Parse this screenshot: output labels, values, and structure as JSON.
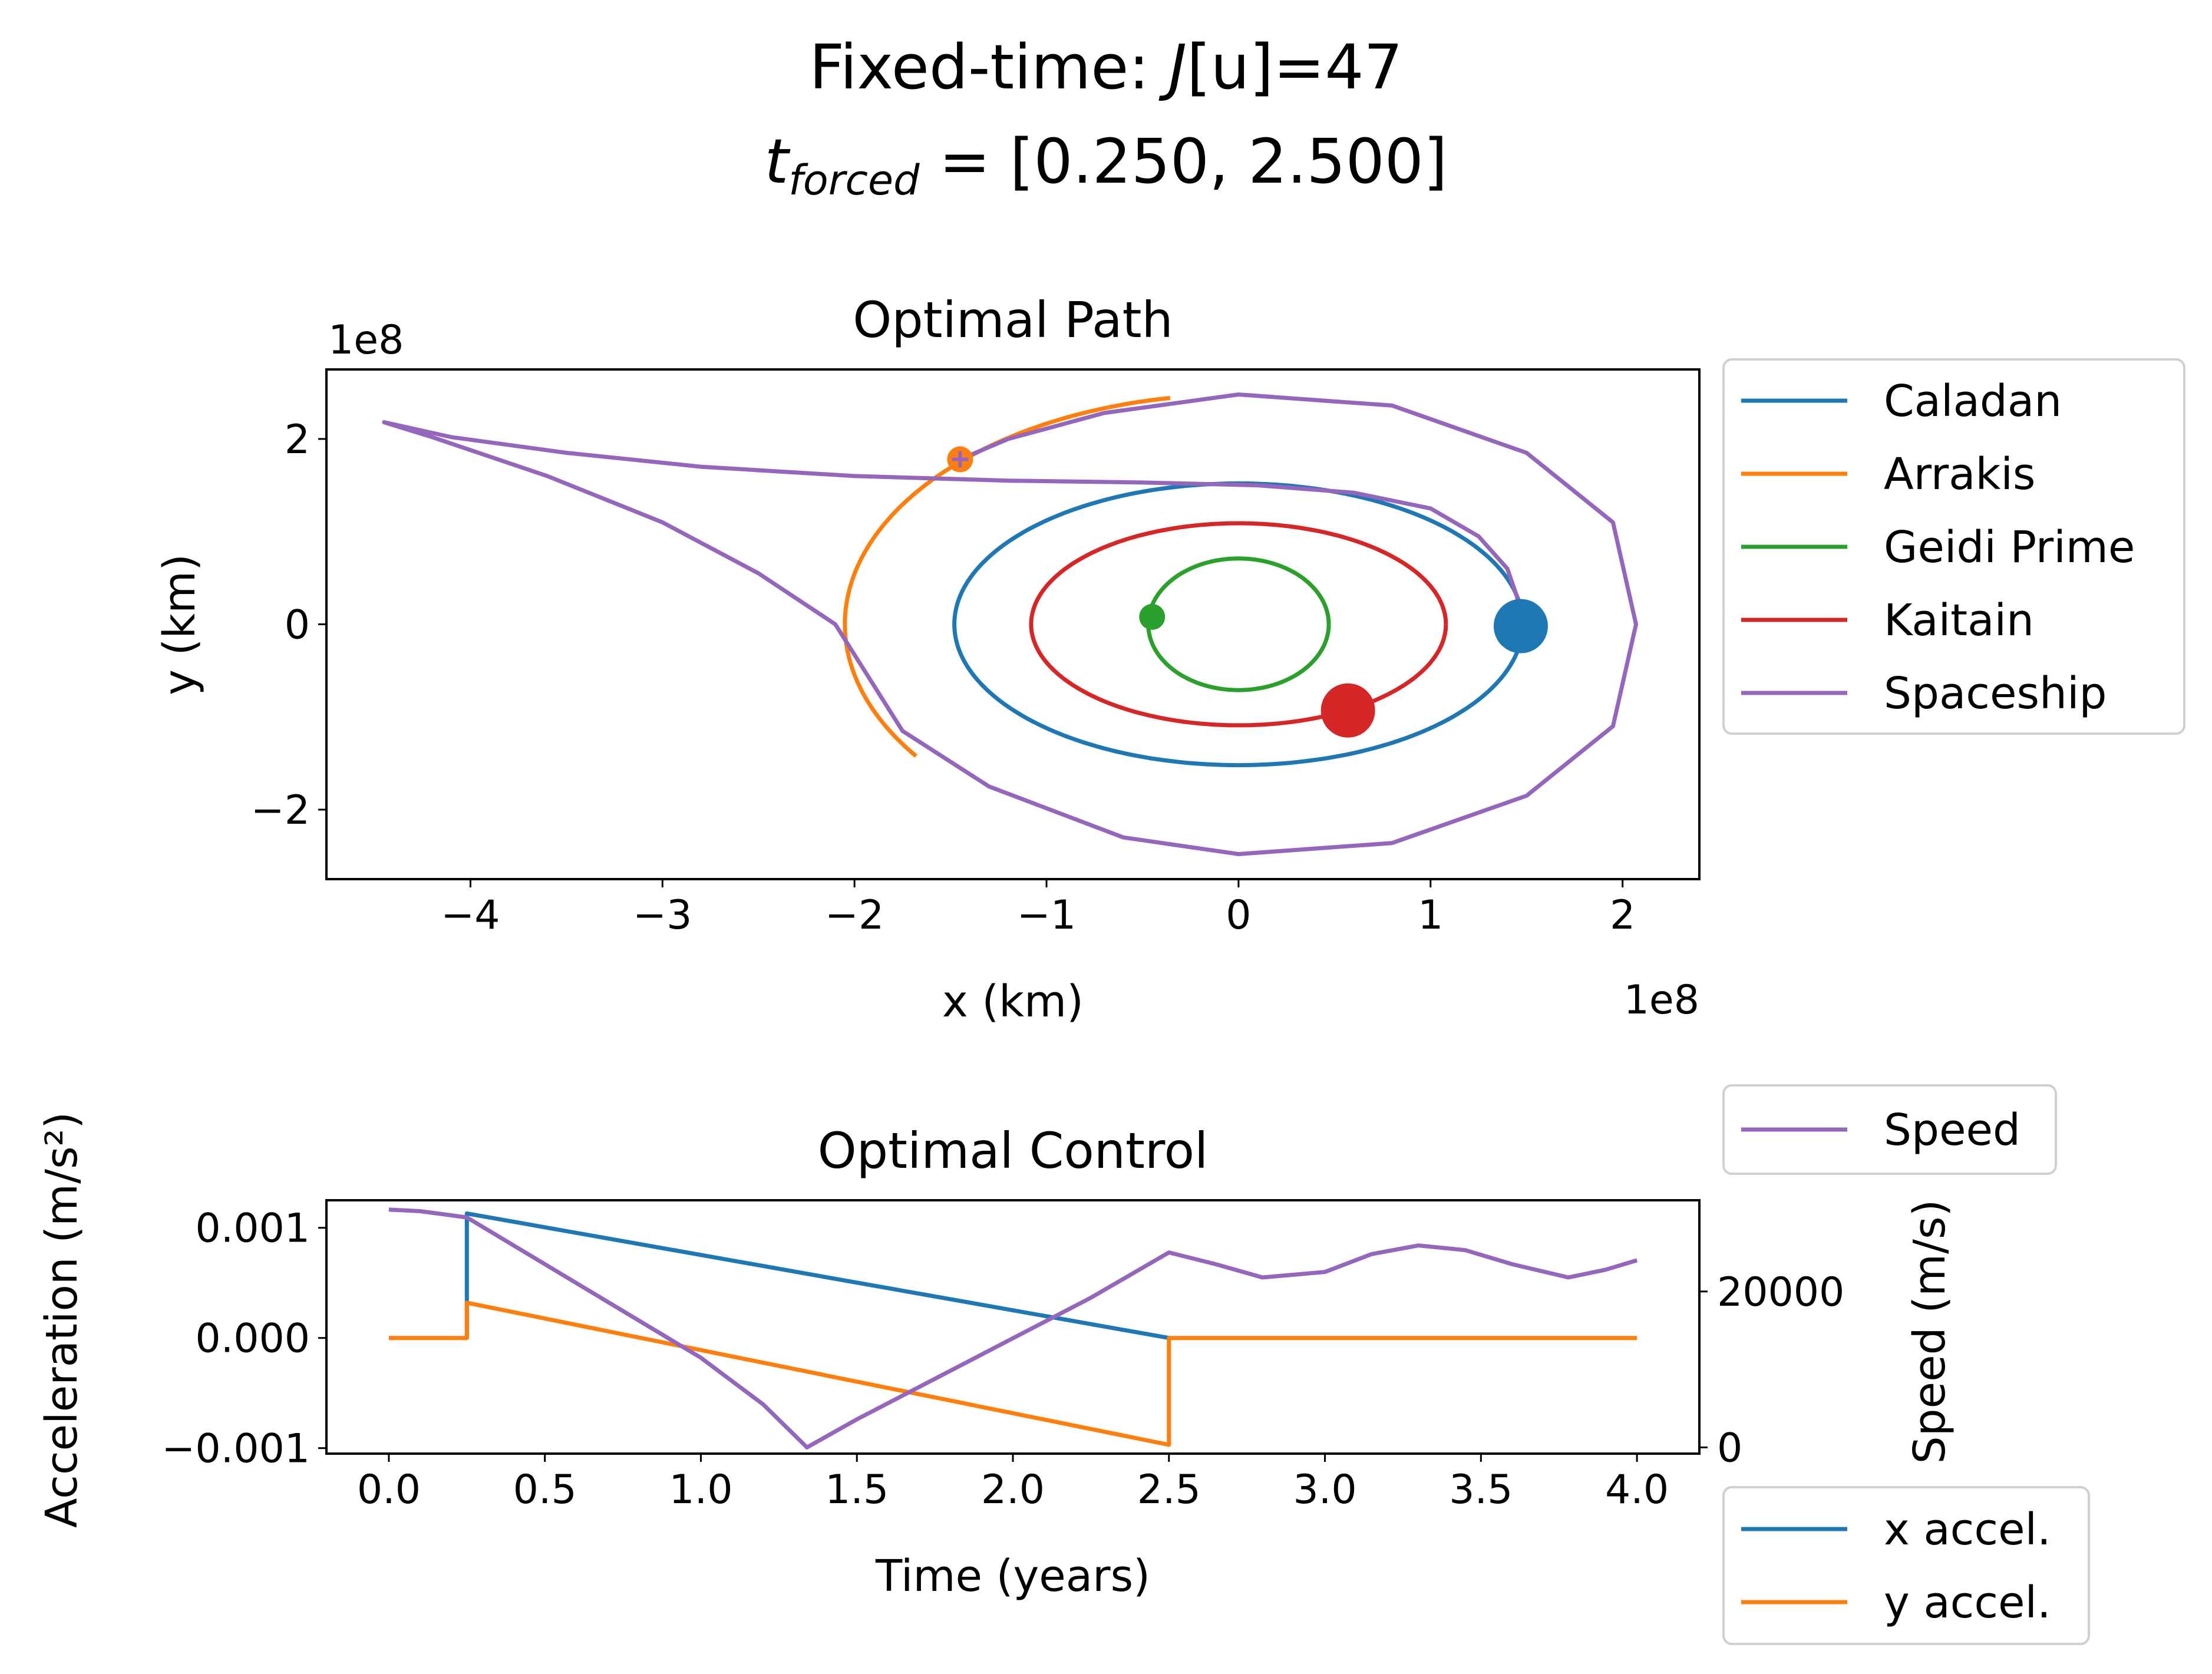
{
  "figure": {
    "title_line1": "Fixed-time: J[u]=47",
    "title_line2": "t_forced = [0.250, 2.500]",
    "title_line1_prefix": "Fixed-time: ",
    "title_line1_J": "J",
    "title_line1_u": "[u]",
    "title_line1_value": "=47",
    "title_line2_t": "t",
    "title_line2_sub": "forced",
    "title_line2_rest": " = [0.250, 2.500]"
  },
  "chart_data": [
    {
      "type": "line",
      "title": "Optimal Path",
      "xlabel": "x (km)",
      "ylabel": "y (km)",
      "x_scale_label": "1e8",
      "y_scale_label": "1e8",
      "xlim": [
        -4.75,
        2.4
      ],
      "ylim": [
        -2.75,
        2.75
      ],
      "xticks": [
        -4,
        -3,
        -2,
        -1,
        0,
        1,
        2
      ],
      "yticks": [
        -2,
        0,
        2
      ],
      "xtick_labels": [
        "−4",
        "−3",
        "−2",
        "−1",
        "0",
        "1",
        "2"
      ],
      "ytick_labels": [
        "−2",
        "0",
        "2"
      ],
      "units_note": "coordinates in units of 1e8 km",
      "orbits": [
        {
          "name": "Caladan",
          "color": "#1f77b4",
          "semi_major_x": 1.48,
          "semi_minor_y": 1.52
        },
        {
          "name": "Arrakis",
          "color": "#ff7f0e",
          "semi_major_x": 2.05,
          "semi_minor_y": 2.48,
          "arc_deg": [
            100,
            215
          ]
        },
        {
          "name": "Geidi Prime",
          "color": "#2ca02c",
          "semi_major_x": 0.47,
          "semi_minor_y": 0.71
        },
        {
          "name": "Kaitain",
          "color": "#d62728",
          "semi_major_x": 1.08,
          "semi_minor_y": 1.09
        }
      ],
      "bodies": [
        {
          "name": "Caladan",
          "color": "#1f77b4",
          "x": 1.47,
          "y": -0.02,
          "size": "large"
        },
        {
          "name": "Arrakis",
          "color": "#ff7f0e",
          "x": -1.45,
          "y": 1.78,
          "size": "small"
        },
        {
          "name": "Geidi Prime",
          "color": "#2ca02c",
          "x": -0.45,
          "y": 0.08,
          "size": "small"
        },
        {
          "name": "Kaitain",
          "color": "#d62728",
          "x": 0.57,
          "y": -0.93,
          "size": "large"
        }
      ],
      "spaceship": {
        "name": "Spaceship",
        "color": "#9467bd",
        "points": [
          [
            1.47,
            0.0
          ],
          [
            1.45,
            0.3
          ],
          [
            1.4,
            0.6
          ],
          [
            1.25,
            0.95
          ],
          [
            1.0,
            1.25
          ],
          [
            0.6,
            1.42
          ],
          [
            0.1,
            1.5
          ],
          [
            -0.5,
            1.53
          ],
          [
            -1.2,
            1.55
          ],
          [
            -2.0,
            1.6
          ],
          [
            -2.8,
            1.7
          ],
          [
            -3.5,
            1.85
          ],
          [
            -4.1,
            2.02
          ],
          [
            -4.45,
            2.18
          ],
          [
            -4.2,
            2.02
          ],
          [
            -3.6,
            1.6
          ],
          [
            -3.0,
            1.1
          ],
          [
            -2.5,
            0.55
          ],
          [
            -2.1,
            0.0
          ],
          [
            -1.75,
            -1.15
          ],
          [
            -1.3,
            -1.75
          ],
          [
            -0.6,
            -2.3
          ],
          [
            0.0,
            -2.48
          ],
          [
            0.8,
            -2.36
          ],
          [
            1.5,
            -1.85
          ],
          [
            1.95,
            -1.1
          ],
          [
            2.07,
            0.0
          ],
          [
            1.95,
            1.1
          ],
          [
            1.5,
            1.85
          ],
          [
            0.8,
            2.36
          ],
          [
            0.0,
            2.48
          ],
          [
            -0.7,
            2.28
          ],
          [
            -1.2,
            2.0
          ],
          [
            -1.45,
            1.78
          ]
        ]
      },
      "legend": {
        "placement": "outside-right-top",
        "entries": [
          {
            "label": "Caladan",
            "color": "#1f77b4"
          },
          {
            "label": "Arrakis",
            "color": "#ff7f0e"
          },
          {
            "label": "Geidi Prime",
            "color": "#2ca02c"
          },
          {
            "label": "Kaitain",
            "color": "#d62728"
          },
          {
            "label": "Spaceship",
            "color": "#9467bd"
          }
        ]
      }
    },
    {
      "type": "line",
      "title": "Optimal Control",
      "xlabel": "Time (years)",
      "ylabel": "Acceleration (m/s²)",
      "ylabel_right": "Speed (m/s)",
      "xlim": [
        -0.2,
        4.2
      ],
      "ylim": [
        -0.00105,
        0.00125
      ],
      "ylim_right": [
        -800,
        31700
      ],
      "xticks": [
        0.0,
        0.5,
        1.0,
        1.5,
        2.0,
        2.5,
        3.0,
        3.5,
        4.0
      ],
      "xtick_labels": [
        "0.0",
        "0.5",
        "1.0",
        "1.5",
        "2.0",
        "2.5",
        "3.0",
        "3.5",
        "4.0"
      ],
      "yticks": [
        -0.001,
        0.0,
        0.001
      ],
      "ytick_labels": [
        "−0.001",
        "0.000",
        "0.001"
      ],
      "yticks_right": [
        0,
        20000
      ],
      "ytick_labels_right": [
        "0",
        "20000"
      ],
      "series": [
        {
          "name": "x accel.",
          "axis": "left",
          "color": "#1f77b4",
          "x": [
            0.25,
            0.25,
            2.5,
            2.5
          ],
          "y": [
            0.0,
            0.00113,
            0.0,
            0.0
          ]
        },
        {
          "name": "y accel.",
          "axis": "left",
          "color": "#ff7f0e",
          "x": [
            0.0,
            0.25,
            0.25,
            2.5,
            2.5,
            4.0
          ],
          "y": [
            0.0,
            0.0,
            0.00032,
            -0.00097,
            0.0,
            0.0
          ]
        },
        {
          "name": "Speed",
          "axis": "right",
          "color": "#9467bd",
          "x": [
            0.0,
            0.1,
            0.25,
            0.5,
            0.75,
            1.0,
            1.2,
            1.34,
            1.5,
            1.75,
            2.0,
            2.25,
            2.5,
            2.65,
            2.8,
            3.0,
            3.15,
            3.3,
            3.45,
            3.6,
            3.78,
            3.9,
            4.0
          ],
          "y": [
            30500,
            30300,
            29500,
            23500,
            17500,
            11500,
            5500,
            0,
            3600,
            8800,
            14000,
            19200,
            25000,
            23500,
            21800,
            22500,
            24800,
            25900,
            25300,
            23500,
            21800,
            22800,
            24000
          ]
        }
      ],
      "legend_top": {
        "placement": "outside-right-top",
        "entries": [
          {
            "label": "Speed",
            "color": "#9467bd"
          }
        ]
      },
      "legend_bottom": {
        "placement": "outside-right-bottom",
        "entries": [
          {
            "label": "x accel.",
            "color": "#1f77b4"
          },
          {
            "label": "y accel.",
            "color": "#ff7f0e"
          }
        ]
      }
    }
  ]
}
